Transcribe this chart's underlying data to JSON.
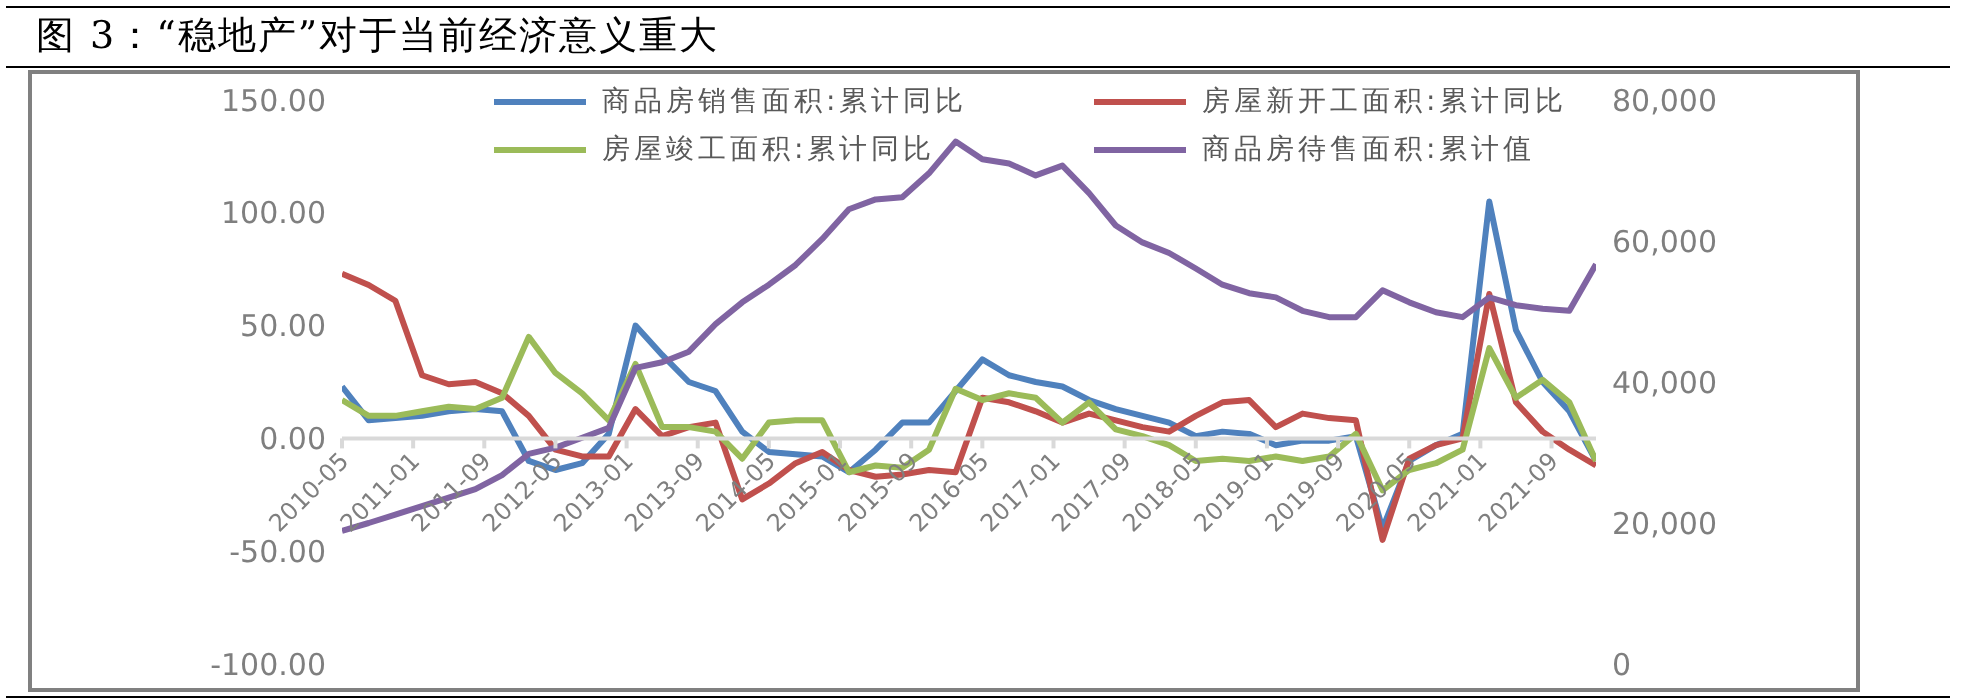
{
  "chart_data": {
    "type": "line",
    "title": "图 3：“稳地产”对于当前经济意义重大",
    "x": [
      "2010-05",
      "2010-08",
      "2010-11",
      "2011-02",
      "2011-05",
      "2011-08",
      "2011-11",
      "2012-02",
      "2012-05",
      "2012-08",
      "2012-11",
      "2013-02",
      "2013-05",
      "2013-08",
      "2013-11",
      "2014-02",
      "2014-05",
      "2014-08",
      "2014-11",
      "2015-02",
      "2015-05",
      "2015-08",
      "2015-11",
      "2016-02",
      "2016-05",
      "2016-08",
      "2016-11",
      "2017-02",
      "2017-05",
      "2017-08",
      "2017-11",
      "2018-02",
      "2018-05",
      "2018-08",
      "2018-11",
      "2019-02",
      "2019-05",
      "2019-08",
      "2019-11",
      "2020-02",
      "2020-05",
      "2020-08",
      "2020-11",
      "2021-02",
      "2021-05",
      "2021-08",
      "2021-11",
      "2022-02"
    ],
    "series": [
      {
        "name": "商品房销售面积:累计同比",
        "color": "#4f81bd",
        "values": [
          23,
          8,
          9,
          10,
          12,
          13,
          12,
          -10,
          -14,
          -11,
          2,
          50,
          37,
          25,
          21,
          3,
          -6,
          -7,
          -8,
          -15,
          -5,
          7,
          7,
          21,
          35,
          28,
          25,
          23,
          17,
          13,
          10,
          7,
          1,
          3,
          2,
          -3,
          -1,
          -1,
          1,
          -40,
          -10,
          -3,
          2,
          105,
          48,
          25,
          12,
          -10
        ]
      },
      {
        "name": "房屋新开工面积:累计同比",
        "color": "#c0504d",
        "values": [
          73,
          68,
          61,
          28,
          24,
          25,
          20,
          10,
          -5,
          -8,
          -8,
          13,
          1,
          5,
          7,
          -27,
          -20,
          -11,
          -6,
          -14,
          -17,
          -16,
          -14,
          -15,
          18,
          16,
          12,
          7,
          11,
          8,
          5,
          3,
          10,
          16,
          17,
          5,
          11,
          9,
          8,
          -45,
          -9,
          -3,
          0,
          64,
          16,
          3,
          -5,
          -12
        ]
      },
      {
        "name": "房屋竣工面积:累计同比",
        "color": "#9bbb59",
        "values": [
          17,
          10,
          10,
          12,
          14,
          13,
          18,
          45,
          29,
          20,
          8,
          33,
          5,
          5,
          3,
          -9,
          7,
          8,
          8,
          -15,
          -12,
          -13,
          -5,
          22,
          17,
          20,
          18,
          7,
          16,
          4,
          1,
          -3,
          -10,
          -9,
          -10,
          -8,
          -10,
          -8,
          2,
          -23,
          -14,
          -11,
          -5,
          40,
          18,
          26,
          16,
          -10
        ]
      },
      {
        "name": "商品房待售面积:累计值",
        "color": "#8064a2",
        "axis": "y2",
        "values": [
          18900,
          20000,
          21200,
          22400,
          23600,
          24800,
          26800,
          29800,
          30700,
          32100,
          33500,
          42000,
          42800,
          44300,
          48200,
          51300,
          53800,
          56600,
          60300,
          64500,
          65900,
          66200,
          69600,
          74100,
          71600,
          71000,
          69300,
          70700,
          66800,
          62200,
          59800,
          58300,
          56100,
          53800,
          52600,
          52000,
          50100,
          49200,
          49200,
          53000,
          51300,
          49900,
          49200,
          52000,
          50900,
          50400,
          50100,
          56700
        ]
      }
    ],
    "xlim": [
      "2010-05",
      "2022-02"
    ],
    "xticks": [
      "2010-05",
      "2011-01",
      "2011-09",
      "2012-05",
      "2013-01",
      "2013-09",
      "2014-05",
      "2015-01",
      "2015-09",
      "2016-05",
      "2017-01",
      "2017-09",
      "2018-05",
      "2019-01",
      "2019-09",
      "2020-05",
      "2021-01",
      "2021-09"
    ],
    "ylim": [
      -100,
      150
    ],
    "yticks": [
      {
        "value": -100,
        "label": "-100.00"
      },
      {
        "value": -50,
        "label": "-50.00"
      },
      {
        "value": 0,
        "label": "0.00"
      },
      {
        "value": 50,
        "label": "50.00"
      },
      {
        "value": 100,
        "label": "100.00"
      },
      {
        "value": 150,
        "label": "150.00"
      }
    ],
    "y2lim": [
      0,
      80000
    ],
    "y2ticks": [
      0,
      {
        "value": 20000,
        "label": "20,000"
      },
      {
        "value": 40000,
        "label": "40,000"
      },
      {
        "value": 60000,
        "label": "60,000"
      },
      {
        "value": 80000,
        "label": "80,000"
      }
    ],
    "legend": "top",
    "marker": "none",
    "line_style": "solid"
  }
}
